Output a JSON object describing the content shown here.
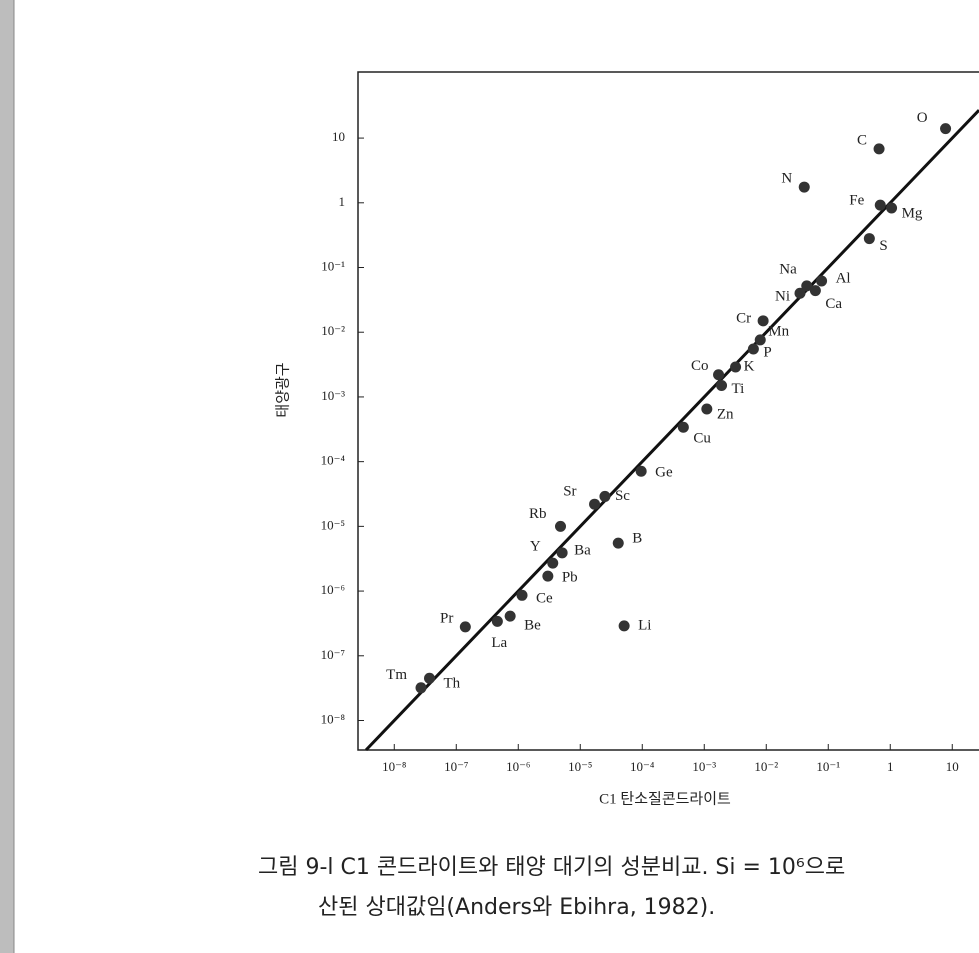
{
  "chart_data": {
    "type": "scatter",
    "log_x": true,
    "log_y": true,
    "color": "#333",
    "xlabel": "C1 탄소질콘드라이트",
    "ylabel": "태양광구",
    "caption": [
      "그림 9-l  C1 콘드라이트와 태양 대기의 성분비교.  Si = 10⁶으로",
      "산된 상대값임(Anders와 Ebihra, 1982)."
    ],
    "xlim": [
      2.6e-09,
      27
    ],
    "ylim": [
      3.5e-09,
      105
    ],
    "xticks": [
      {
        "value": 1e-08,
        "label": "10⁻⁸"
      },
      {
        "value": 1e-07,
        "label": "10⁻⁷"
      },
      {
        "value": 1e-06,
        "label": "10⁻⁶"
      },
      {
        "value": 1e-05,
        "label": "10⁻⁵"
      },
      {
        "value": 0.0001,
        "label": "10⁻⁴"
      },
      {
        "value": 0.001,
        "label": "10⁻³"
      },
      {
        "value": 0.01,
        "label": "10⁻²"
      },
      {
        "value": 0.1,
        "label": "10⁻¹"
      },
      1,
      10
    ],
    "yticks": [
      {
        "value": 1e-08,
        "label": "10⁻⁸"
      },
      {
        "value": 1e-07,
        "label": "10⁻⁷"
      },
      {
        "value": 1e-06,
        "label": "10⁻⁶"
      },
      {
        "value": 1e-05,
        "label": "10⁻⁵"
      },
      {
        "value": 0.0001,
        "label": "10⁻⁴"
      },
      {
        "value": 0.001,
        "label": "10⁻³"
      },
      {
        "value": 0.01,
        "label": "10⁻²"
      },
      {
        "value": 0.1,
        "label": "10⁻¹"
      },
      1,
      10
    ],
    "labels": [
      "O",
      "C",
      "N",
      "Fe",
      "Mg",
      "S",
      "Al",
      "Na",
      "Ni",
      "Ca",
      "Cr",
      "Mn",
      "P",
      "Co",
      "K",
      "Ti",
      "Zn",
      "Cu",
      "Ge",
      "Sr",
      "Sc",
      "Rb",
      "B",
      "Ba",
      "Y",
      "Pb",
      "Ce",
      "Be",
      "La",
      "Li",
      "Pr",
      "Th",
      "Tm"
    ],
    "x": [
      7.8,
      0.66,
      0.041,
      0.69,
      1.05,
      0.46,
      0.078,
      0.045,
      0.035,
      0.062,
      0.0089,
      0.008,
      0.0062,
      0.0017,
      0.0032,
      0.0019,
      0.0011,
      0.00046,
      9.6e-05,
      1.7e-05,
      2.5e-05,
      4.8e-06,
      4.1e-05,
      5.1e-06,
      3.6e-06,
      3e-06,
      1.15e-06,
      7.4e-07,
      4.6e-07,
      5.1e-05,
      1.4e-07,
      3.7e-08,
      2.7e-08
    ],
    "y": [
      14,
      6.8,
      1.75,
      0.92,
      0.83,
      0.28,
      0.062,
      0.052,
      0.04,
      0.044,
      0.015,
      0.0076,
      0.0055,
      0.0022,
      0.0029,
      0.0015,
      0.00065,
      0.00034,
      7.1e-05,
      2.2e-05,
      2.9e-05,
      1e-05,
      5.5e-06,
      3.9e-06,
      2.7e-06,
      1.7e-06,
      8.6e-07,
      4.1e-07,
      3.4e-07,
      2.9e-07,
      2.8e-07,
      4.5e-08,
      3.2e-08
    ]
  }
}
